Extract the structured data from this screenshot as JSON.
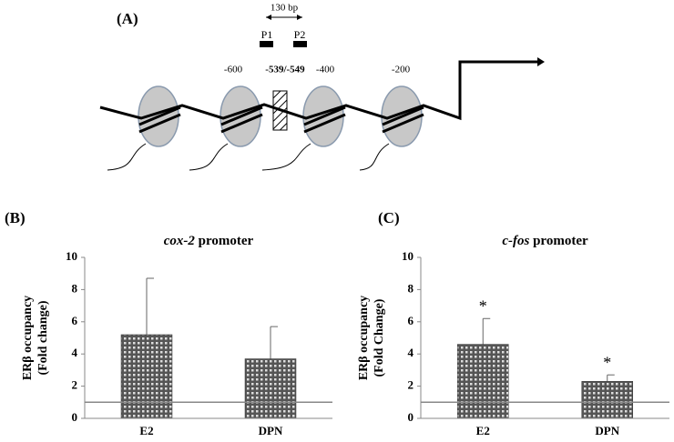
{
  "diagram": {
    "panel": "(A)",
    "span": "130 bp",
    "primers": [
      "P1",
      "P2"
    ],
    "positions": [
      "-600",
      "-539/-549",
      "-400",
      "-200"
    ]
  },
  "chart_data": [
    {
      "type": "bar",
      "panel": "(B)",
      "title": {
        "gene": "cox-2",
        "rest": "promoter"
      },
      "ylabel": [
        "ERβ occupancy",
        "(Fold change)"
      ],
      "categories": [
        "E2",
        "DPN"
      ],
      "values": [
        5.2,
        3.7
      ],
      "errors": [
        3.5,
        2.0
      ],
      "color": "#333333",
      "ylim": [
        0,
        10
      ],
      "yticks": [
        0,
        2,
        4,
        6,
        8,
        10
      ],
      "reference_line": 1
    },
    {
      "type": "bar",
      "panel": "(C)",
      "title": {
        "gene": "c-fos",
        "rest": "promoter"
      },
      "ylabel": [
        "ERβ occupancy",
        "(Fold Change)"
      ],
      "categories": [
        "E2",
        "DPN"
      ],
      "values": [
        4.6,
        2.3
      ],
      "errors": [
        1.6,
        0.4
      ],
      "value_annotations": [
        "*",
        "*"
      ],
      "color": "#333333",
      "ylim": [
        0,
        10
      ],
      "yticks": [
        0,
        2,
        4,
        6,
        8,
        10
      ],
      "reference_line": 1
    }
  ]
}
